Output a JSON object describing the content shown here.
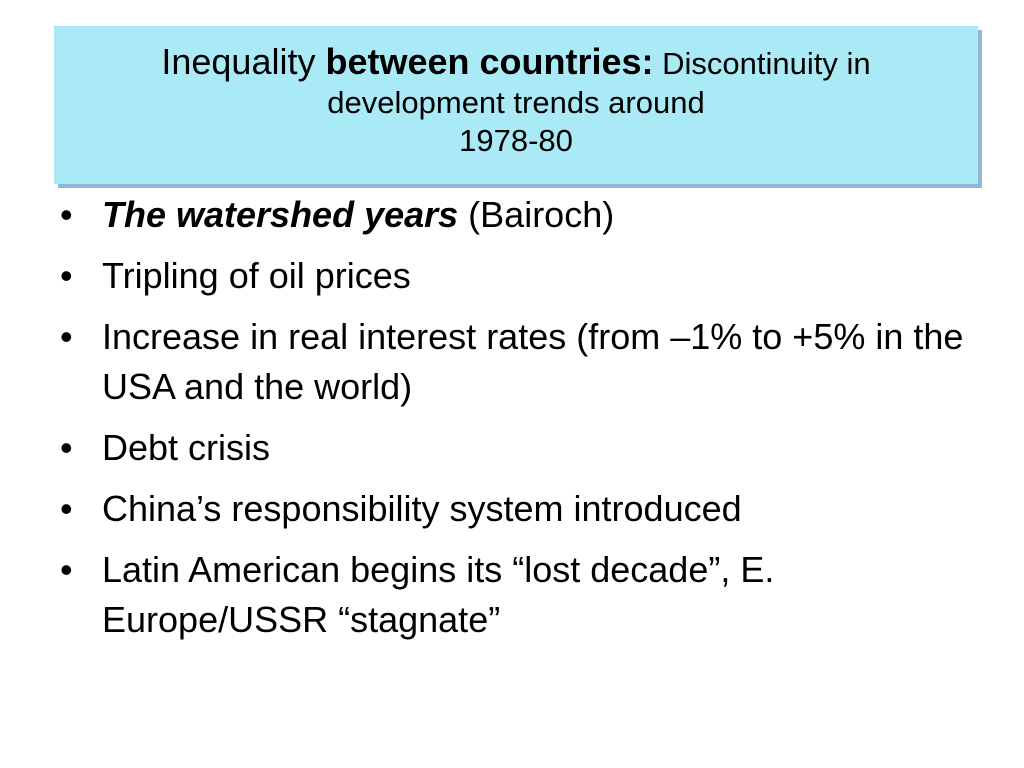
{
  "title": {
    "part_regular": "Inequality ",
    "part_bold": "between countries:",
    "part_small_1": " Discontinuity in",
    "line2": "development trends around",
    "line3": "1978-80"
  },
  "bullets": [
    {
      "emphasis": "The watershed years",
      "text": " (Bairoch)"
    },
    {
      "text": "Tripling of oil prices"
    },
    {
      "text": "Increase in real interest rates (from –1% to +5% in the USA and the world)"
    },
    {
      "text": "Debt crisis"
    },
    {
      "text": "China’s responsibility system introduced"
    },
    {
      "text": "Latin American begins its “lost decade”, E. Europe/USSR “stagnate”"
    }
  ],
  "bullet_symbol": "•",
  "colors": {
    "title_background": "#aaeaf6",
    "title_shadow": "#8fb8d8",
    "text": "#000000",
    "background": "#ffffff"
  }
}
